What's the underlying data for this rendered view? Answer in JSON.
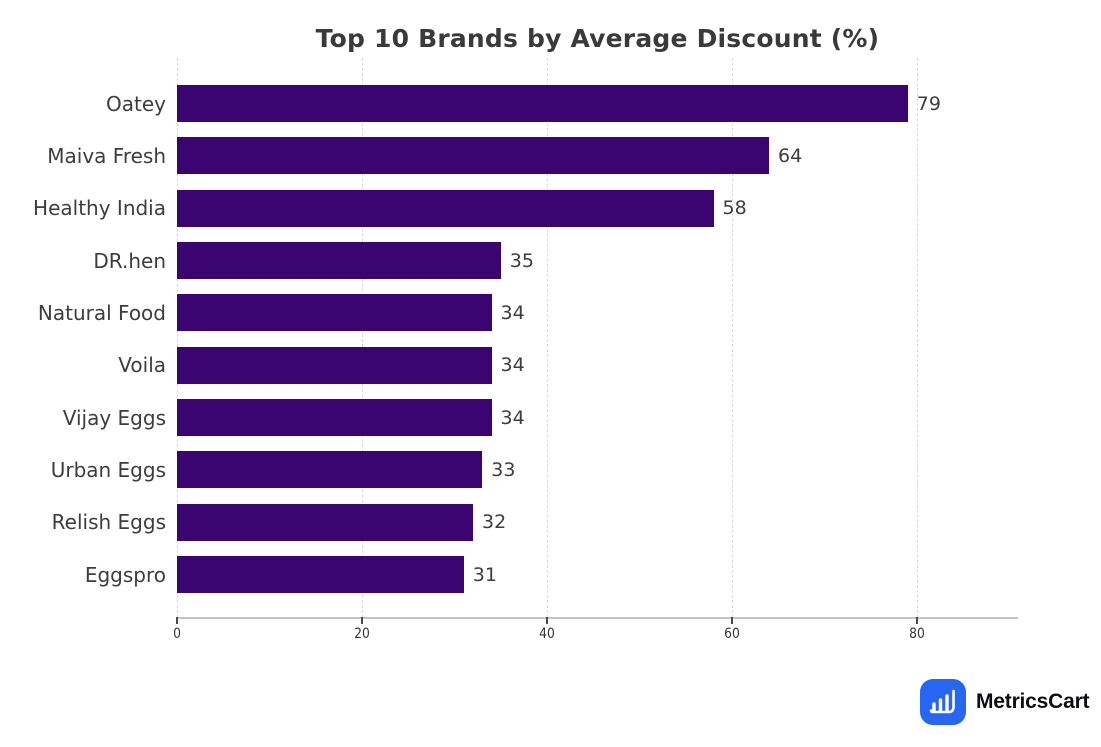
{
  "page": {
    "background": "#ffffff"
  },
  "chart_data": {
    "type": "bar",
    "orientation": "horizontal",
    "title": "Top 10 Brands by Average Discount (%)",
    "categories": [
      "Oatey",
      "Maiva Fresh",
      "Healthy India",
      "DR.hen",
      "Natural Food",
      "Voila",
      "Vijay Eggs",
      "Urban Eggs",
      "Relish Eggs",
      "Eggspro"
    ],
    "values": [
      79,
      64,
      58,
      35,
      34,
      34,
      34,
      33,
      32,
      31
    ],
    "value_labels": [
      "79",
      "64",
      "58",
      "35",
      "34",
      "34",
      "34",
      "33",
      "32",
      "31"
    ],
    "xlabel": "",
    "ylabel": "",
    "x_ticks": [
      0,
      20,
      40,
      60,
      80
    ],
    "xlim": [
      0,
      91
    ],
    "grid": "vertical-dashed",
    "legend": "none",
    "colors": {
      "bar": "#3a0471",
      "title": "#3a3a3a",
      "labels": "#3d3d3d",
      "ticks": "#333333",
      "gridline": "#d9d9d9",
      "axis_line": "#c3c3c3"
    }
  },
  "branding": {
    "logo_text": "MetricsCart",
    "logo_icon": "bar-chart-cart-icon",
    "colors": {
      "badge": "#2766f0",
      "icon": "#ffffff",
      "text": "#0e0e12"
    }
  }
}
